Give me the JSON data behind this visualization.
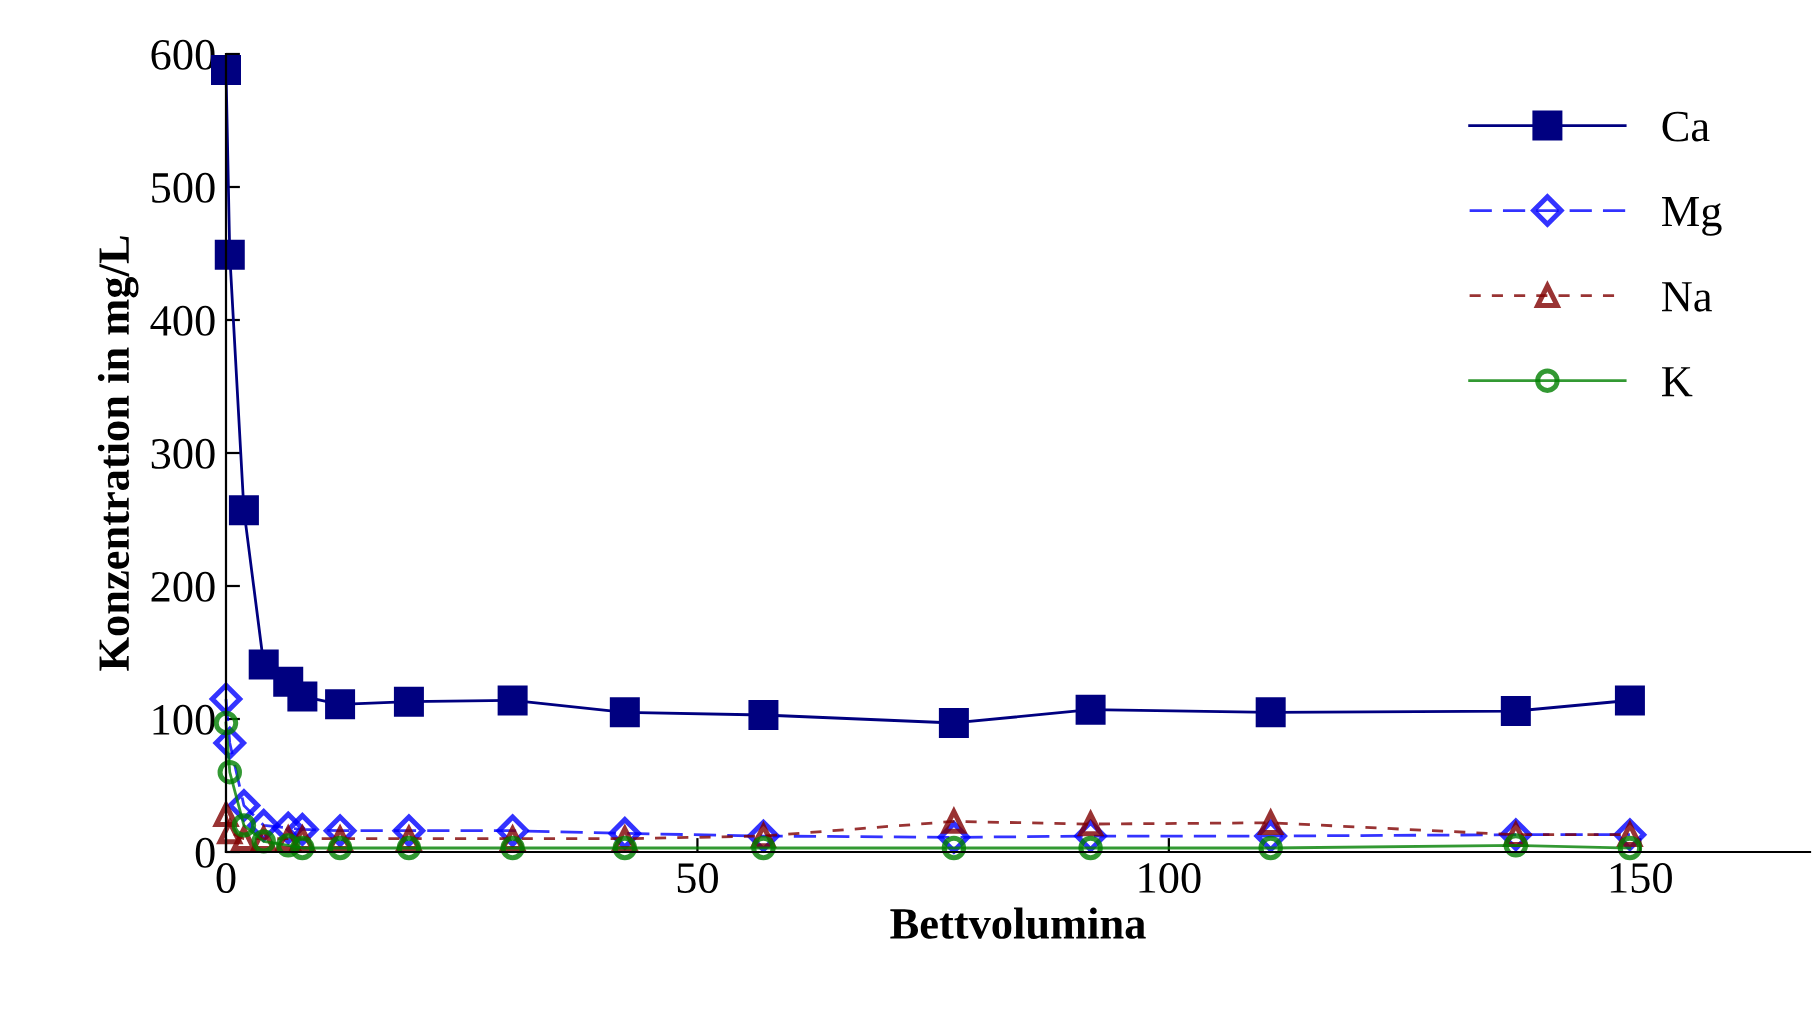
{
  "chart_data": {
    "type": "line",
    "xlabel": "Bettvolumina",
    "ylabel": "Konzentration in mg/L",
    "xlim": [
      0,
      168
    ],
    "xticks": [
      0,
      50,
      100,
      150
    ],
    "ylim": [
      0,
      600
    ],
    "yticks": [
      0,
      100,
      200,
      300,
      400,
      500,
      600
    ],
    "grid": false,
    "legend": "top right",
    "x": [
      0,
      0.4,
      1.9,
      4,
      6.6,
      8.1,
      12.1,
      19.4,
      30.4,
      42.3,
      57,
      77.2,
      91.7,
      110.8,
      136.8,
      148.9
    ],
    "series": [
      {
        "name": "Ca",
        "color": "#000080",
        "marker": "square",
        "line_style": "solid",
        "values": [
          588,
          449,
          257,
          141,
          128,
          117,
          111,
          113,
          114,
          105,
          103,
          97,
          107,
          105,
          106,
          114
        ]
      },
      {
        "name": "Mg",
        "color": "#0000ff",
        "marker": "diamond",
        "line_style": "dashed",
        "values": [
          115,
          82,
          35,
          20,
          18,
          17,
          16,
          16,
          16,
          14,
          12,
          11,
          12,
          12,
          13,
          13
        ]
      },
      {
        "name": "Na",
        "color": "#800000",
        "marker": "triangle",
        "line_style": "dotted",
        "values": [
          28,
          15,
          10,
          10,
          10,
          10,
          10,
          10,
          10,
          10,
          12,
          23,
          21,
          22,
          13,
          13
        ]
      },
      {
        "name": "K",
        "color": "#008000",
        "marker": "circle",
        "line_style": "solid",
        "values": [
          97,
          60,
          20,
          8,
          5,
          3,
          3,
          3,
          3,
          3,
          3,
          3,
          3,
          3,
          5,
          3
        ]
      }
    ]
  }
}
